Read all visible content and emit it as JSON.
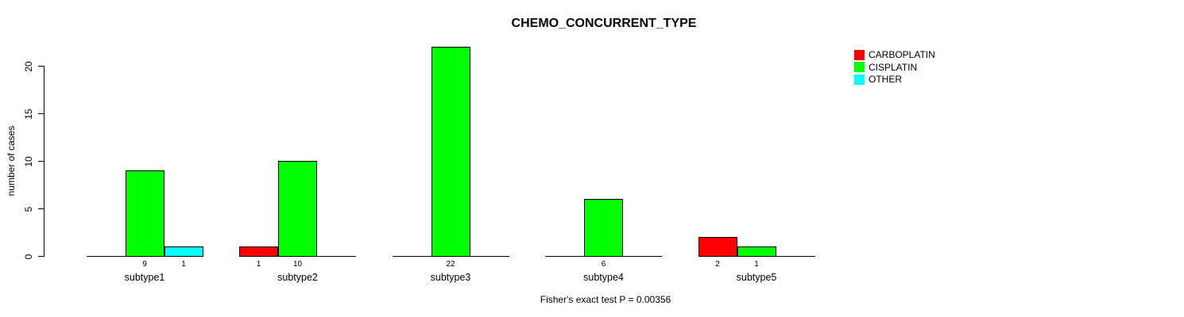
{
  "title": "CHEMO_CONCURRENT_TYPE",
  "footnote": "Fisher's exact test P = 0.00356",
  "y_axis": {
    "label": "number of cases"
  },
  "legend": {
    "items": [
      {
        "label": "CARBOPLATIN",
        "color": "#FF0000"
      },
      {
        "label": "CISPLATIN",
        "color": "#00FF00"
      },
      {
        "label": "OTHER",
        "color": "#00FFFF"
      }
    ]
  },
  "chart_data": {
    "type": "bar",
    "title": "CHEMO_CONCURRENT_TYPE",
    "xlabel": "",
    "ylabel": "number of cases",
    "ylim": [
      0,
      22
    ],
    "yticks": [
      0,
      5,
      10,
      15,
      20
    ],
    "grid": false,
    "legend_position": "top-right",
    "bar_value_labels": true,
    "categories": [
      "subtype1",
      "subtype2",
      "subtype3",
      "subtype4",
      "subtype5"
    ],
    "series": [
      {
        "name": "CARBOPLATIN",
        "color": "#FF0000",
        "values": [
          0,
          1,
          0,
          0,
          2
        ]
      },
      {
        "name": "CISPLATIN",
        "color": "#00FF00",
        "values": [
          9,
          10,
          22,
          6,
          1
        ]
      },
      {
        "name": "OTHER",
        "color": "#00FFFF",
        "values": [
          1,
          0,
          0,
          0,
          0
        ]
      }
    ],
    "annotation": "Fisher's exact test P = 0.00356"
  }
}
